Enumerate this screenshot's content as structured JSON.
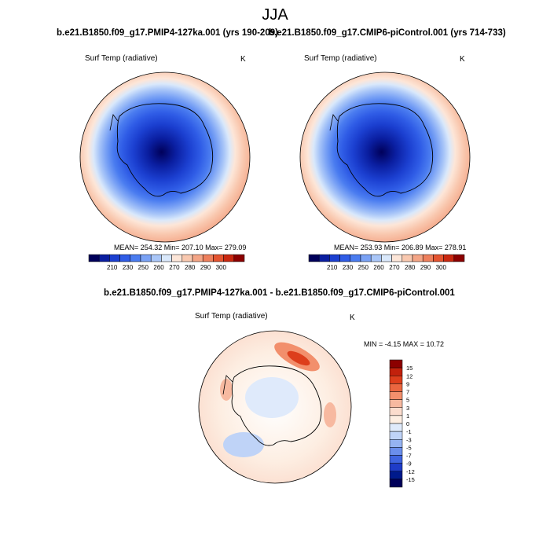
{
  "main_title": "JJA",
  "panels": [
    {
      "title": "b.e21.B1850.f09_g17.PMIP4-127ka.001 (yrs 190-209)",
      "variable": "Surf Temp (radiative)",
      "units": "K",
      "stats": "MEAN= 254.32  Min= 207.10  Max= 279.09",
      "colorbar_ticks": [
        "210",
        "230",
        "250",
        "260",
        "270",
        "280",
        "290",
        "300"
      ]
    },
    {
      "title": "b.e21.B1850.f09_g17.CMIP6-piControl.001 (yrs 714-733)",
      "variable": "Surf Temp (radiative)",
      "units": "K",
      "stats": "MEAN= 253.93  Min= 206.89  Max= 278.91",
      "colorbar_ticks": [
        "210",
        "230",
        "250",
        "260",
        "270",
        "280",
        "290",
        "300"
      ]
    }
  ],
  "diff_panel": {
    "title": "b.e21.B1850.f09_g17.PMIP4-127ka.001 - b.e21.B1850.f09_g17.CMIP6-piControl.001",
    "variable": "Surf Temp (radiative)",
    "units": "K",
    "stats": "MIN =  -4.15 MAX =  10.72",
    "colorbar_ticks": [
      "15",
      "12",
      "9",
      "7",
      "5",
      "3",
      "1",
      "0",
      "-1",
      "-3",
      "-5",
      "-7",
      "-9",
      "-12",
      "-15"
    ]
  },
  "colors": {
    "abs_scale": [
      "#00005a",
      "#0a1ea0",
      "#1b3fd0",
      "#2f5ce6",
      "#4a7cf0",
      "#7aa2f5",
      "#a9c6f8",
      "#d9e8fb",
      "#fde6d8",
      "#f9c8af",
      "#f4a586",
      "#ee7f5c",
      "#e4532f",
      "#c9270f",
      "#8c0000"
    ],
    "diff_scale": [
      "#8c0000",
      "#c2210c",
      "#dd3e1c",
      "#ea6640",
      "#f28f6c",
      "#f7b9a0",
      "#fbdccd",
      "#fdeee2",
      "#dfeafb",
      "#bfd3f7",
      "#95b3f2",
      "#6a8eec",
      "#3f64e0",
      "#1f3cc8",
      "#001a8c",
      "#00005a"
    ]
  }
}
